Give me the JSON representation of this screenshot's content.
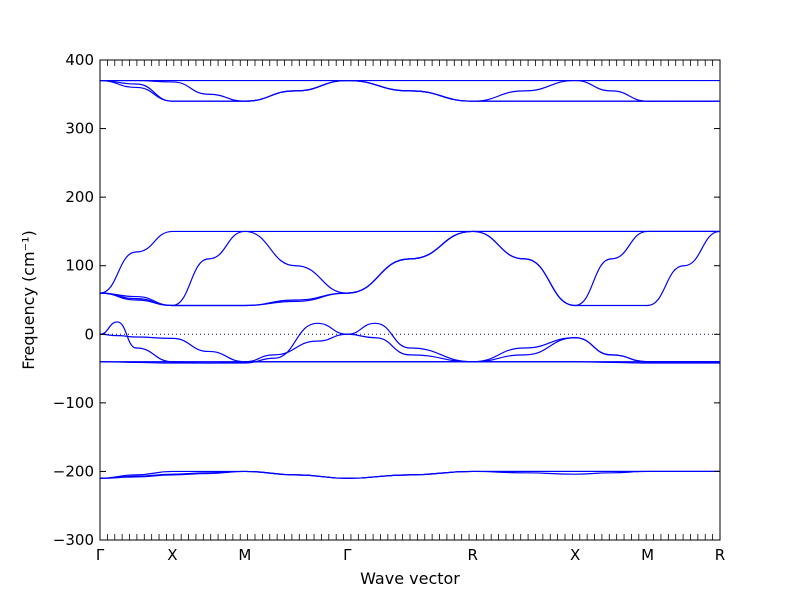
{
  "chart_data": {
    "type": "line",
    "xlabel": "Wave vector",
    "ylabel": "Frequency (cm⁻¹)",
    "ylim": [
      -300,
      400
    ],
    "yticks": [
      -300,
      -200,
      -100,
      0,
      100,
      200,
      300,
      400
    ],
    "high_symbol_points": [
      {
        "label": "Γ",
        "x": 0
      },
      {
        "label": "X",
        "x": 0.5
      },
      {
        "label": "M",
        "x": 1.0
      },
      {
        "label": "Γ",
        "x": 1.707
      },
      {
        "label": "R",
        "x": 2.573
      },
      {
        "label": "X",
        "x": 3.28
      },
      {
        "label": "M",
        "x": 3.78
      },
      {
        "label": "R",
        "x": 4.28
      }
    ],
    "xlim": [
      0,
      4.28
    ],
    "zero_line": {
      "y": 0,
      "style": "dotted"
    },
    "grid": false,
    "series": [
      {
        "x": [
          0,
          0.25,
          0.5,
          0.75,
          1.0,
          1.35,
          1.707,
          2.14,
          2.573,
          2.93,
          3.28,
          3.53,
          3.78,
          4.03,
          4.28
        ],
        "y": [
          370,
          370,
          370,
          370,
          370,
          370,
          370,
          370,
          370,
          370,
          370,
          370,
          370,
          370,
          370
        ]
      },
      {
        "x": [
          0,
          0.25,
          0.5,
          0.75,
          1.0,
          1.35,
          1.707,
          2.14,
          2.573,
          2.93,
          3.28,
          3.53,
          3.78,
          4.03,
          4.28
        ],
        "y": [
          370,
          365,
          340,
          340,
          340,
          355,
          370,
          355,
          340,
          355,
          370,
          355,
          340,
          340,
          340
        ]
      },
      {
        "x": [
          0,
          0.25,
          0.5,
          0.75,
          1.0,
          1.35,
          1.707,
          2.14,
          2.573,
          2.93,
          3.28,
          3.53,
          3.78,
          4.03,
          4.28
        ],
        "y": [
          370,
          370,
          368,
          350,
          340,
          355,
          370,
          355,
          340,
          340,
          340,
          340,
          340,
          340,
          340
        ]
      },
      {
        "x": [
          0,
          0.25,
          0.5,
          0.75,
          1.0,
          1.35,
          1.707,
          2.14,
          2.573,
          2.93,
          3.28,
          3.53,
          3.78,
          4.03,
          4.28
        ],
        "y": [
          370,
          360,
          340,
          340,
          340,
          355,
          370,
          355,
          340,
          340,
          340,
          340,
          340,
          340,
          340
        ]
      },
      {
        "x": [
          0,
          0.25,
          0.5,
          0.75,
          1.0,
          1.35,
          1.707,
          2.14,
          2.573,
          2.93,
          3.28,
          3.53,
          3.78,
          4.03,
          4.28
        ],
        "y": [
          60,
          120,
          150,
          150,
          150,
          150,
          150,
          150,
          150,
          150,
          150,
          150,
          150,
          150,
          150
        ]
      },
      {
        "x": [
          0,
          0.25,
          0.5,
          0.75,
          1.0,
          1.35,
          1.707,
          2.14,
          2.573,
          2.93,
          3.28,
          3.53,
          3.78,
          4.03,
          4.28
        ],
        "y": [
          60,
          55,
          42,
          110,
          150,
          100,
          60,
          110,
          150,
          110,
          42,
          110,
          150,
          150,
          150
        ]
      },
      {
        "x": [
          0,
          0.25,
          0.5,
          0.75,
          1.0,
          1.35,
          1.707,
          2.14,
          2.573,
          2.93,
          3.28,
          3.53,
          3.78,
          4.03,
          4.28
        ],
        "y": [
          60,
          52,
          42,
          42,
          42,
          50,
          60,
          110,
          150,
          150,
          150,
          150,
          150,
          150,
          150
        ]
      },
      {
        "x": [
          0,
          0.25,
          0.5,
          0.75,
          1.0,
          1.35,
          1.707,
          2.14,
          2.573,
          2.93,
          3.28,
          3.53,
          3.78,
          4.03,
          4.28
        ],
        "y": [
          60,
          50,
          42,
          42,
          42,
          48,
          60,
          110,
          150,
          110,
          42,
          42,
          42,
          100,
          150
        ]
      },
      {
        "x": [
          0,
          0.12,
          0.25,
          0.5,
          0.75,
          1.0,
          1.2,
          1.5,
          1.707,
          1.9,
          2.14,
          2.573,
          2.93,
          3.28,
          3.53,
          3.78,
          4.03,
          4.28
        ],
        "y": [
          0,
          18,
          -20,
          -40,
          -42,
          -42,
          -35,
          16,
          0,
          16,
          -20,
          -40,
          -20,
          -5,
          -30,
          -40,
          -40,
          -40
        ]
      },
      {
        "x": [
          0,
          0.12,
          0.25,
          0.5,
          0.75,
          1.0,
          1.2,
          1.5,
          1.707,
          1.9,
          2.14,
          2.573,
          2.93,
          3.28,
          3.53,
          3.78,
          4.03,
          4.28
        ],
        "y": [
          0,
          -2,
          -4,
          -6,
          -25,
          -40,
          -30,
          -10,
          0,
          -5,
          -30,
          -40,
          -30,
          -5,
          -30,
          -40,
          -40,
          -40
        ]
      },
      {
        "x": [
          0,
          0.25,
          0.5,
          0.75,
          1.0,
          1.35,
          1.707,
          2.14,
          2.573,
          2.93,
          3.28,
          3.53,
          3.78,
          4.03,
          4.28
        ],
        "y": [
          -40,
          -40,
          -40,
          -40,
          -40,
          -40,
          -40,
          -40,
          -40,
          -40,
          -40,
          -40,
          -40,
          -40,
          -40
        ]
      },
      {
        "x": [
          0,
          0.25,
          0.5,
          0.75,
          1.0,
          1.35,
          1.707,
          2.14,
          2.573,
          2.93,
          3.28,
          3.53,
          3.78,
          4.03,
          4.28
        ],
        "y": [
          -40,
          -41,
          -42,
          -42,
          -40,
          -40,
          -40,
          -40,
          -40,
          -40,
          -40,
          -41,
          -42,
          -42,
          -42
        ]
      },
      {
        "x": [
          0,
          0.25,
          0.5,
          0.75,
          1.0,
          1.35,
          1.707,
          2.14,
          2.573,
          2.93,
          3.28,
          3.53,
          3.78,
          4.03,
          4.28
        ],
        "y": [
          -210,
          -205,
          -200,
          -200,
          -200,
          -205,
          -210,
          -205,
          -200,
          -200,
          -200,
          -200,
          -200,
          -200,
          -200
        ]
      },
      {
        "x": [
          0,
          0.25,
          0.5,
          0.75,
          1.0,
          1.35,
          1.707,
          2.14,
          2.573,
          2.93,
          3.28,
          3.53,
          3.78,
          4.03,
          4.28
        ],
        "y": [
          -210,
          -207,
          -204,
          -202,
          -200,
          -205,
          -210,
          -205,
          -200,
          -202,
          -204,
          -202,
          -200,
          -200,
          -200
        ]
      },
      {
        "x": [
          0,
          0.25,
          0.5,
          0.75,
          1.0,
          1.35,
          1.707,
          2.14,
          2.573,
          2.93,
          3.28,
          3.53,
          3.78,
          4.03,
          4.28
        ],
        "y": [
          -210,
          -208,
          -205,
          -203,
          -200,
          -205,
          -210,
          -205,
          -200,
          -200,
          -200,
          -200,
          -200,
          -200,
          -200
        ]
      }
    ],
    "style": {
      "line_color": "#0000ff",
      "axis_color": "#000000",
      "zero_line_color": "#000080",
      "background": "#ffffff"
    }
  }
}
